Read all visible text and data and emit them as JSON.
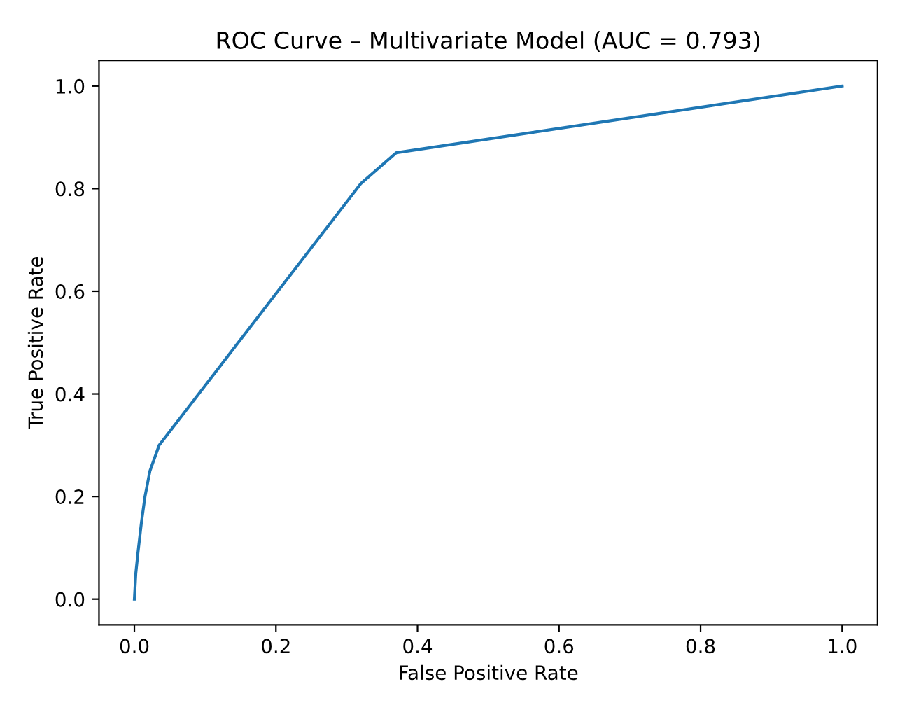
{
  "chart_data": {
    "type": "line",
    "title": "ROC Curve – Multivariate Model (AUC = 0.793)",
    "xlabel": "False Positive Rate",
    "ylabel": "True Positive Rate",
    "series": [
      {
        "color": "#1f77b4",
        "x": [
          0,
          0.002,
          0.005,
          0.01,
          0.015,
          0.022,
          0.035,
          0.32,
          0.37,
          1.0
        ],
        "values": [
          0,
          0.05,
          0.09,
          0.15,
          0.2,
          0.25,
          0.3,
          0.81,
          0.87,
          1.0
        ]
      }
    ],
    "xlim": [
      -0.05,
      1.05
    ],
    "ylim": [
      -0.05,
      1.05
    ],
    "xticks": [
      {
        "value": 0,
        "label": "0.0"
      },
      0.2,
      0.4,
      0.6,
      0.8,
      {
        "value": 1,
        "label": "1.0"
      }
    ],
    "yticks": [
      {
        "value": 0,
        "label": "0.0"
      },
      0.2,
      0.4,
      0.6,
      0.8,
      {
        "value": 1,
        "label": "1.0"
      }
    ],
    "grid": false,
    "legend": false
  }
}
